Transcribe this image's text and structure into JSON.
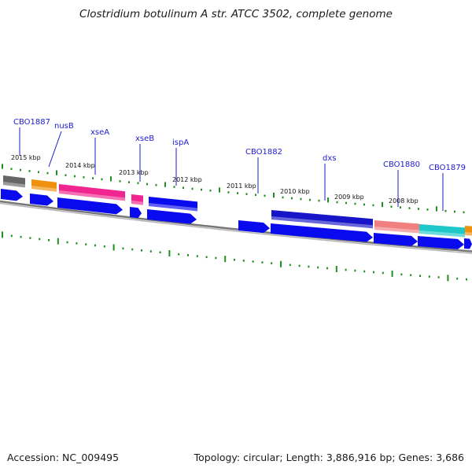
{
  "title": "Clostridium botulinum A str. ATCC 3502, complete genome",
  "footer": {
    "accession": "Accession: NC_009495",
    "summary": "Topology: circular; Length: 3,886,916 bp; Genes: 3,686"
  },
  "colors": {
    "cds": "#0a0aee",
    "gene_label": "#1c1ccc",
    "tick": "#1f8f1f",
    "backbone": "#777777"
  },
  "kbp_labels": [
    {
      "text": "2015 kbp"
    },
    {
      "text": "2014 kbp"
    },
    {
      "text": "2013 kbp"
    },
    {
      "text": "2012 kbp"
    },
    {
      "text": "2011 kbp"
    },
    {
      "text": "2010 kbp"
    },
    {
      "text": "2009 kbp"
    },
    {
      "text": "2008 kbp"
    }
  ],
  "gene_labels": [
    {
      "text": "CBO1887"
    },
    {
      "text": "nusB"
    },
    {
      "text": "xseA"
    },
    {
      "text": "xseB"
    },
    {
      "text": "ispA"
    },
    {
      "text": "CBO1882"
    },
    {
      "text": "dxs"
    },
    {
      "text": "CBO1880"
    },
    {
      "text": "CBO1879"
    }
  ],
  "feature_colors": {
    "CBO1887": "#666666",
    "nusB": "#f0900f",
    "xseA": "#f0258f",
    "xseB": "#f0258f",
    "ispA": "#0a0aee",
    "dxs": "#1616c8",
    "CBO1880": "#f07f7f",
    "CBO1879": "#1fc8c8",
    "next": "#f0900f"
  }
}
